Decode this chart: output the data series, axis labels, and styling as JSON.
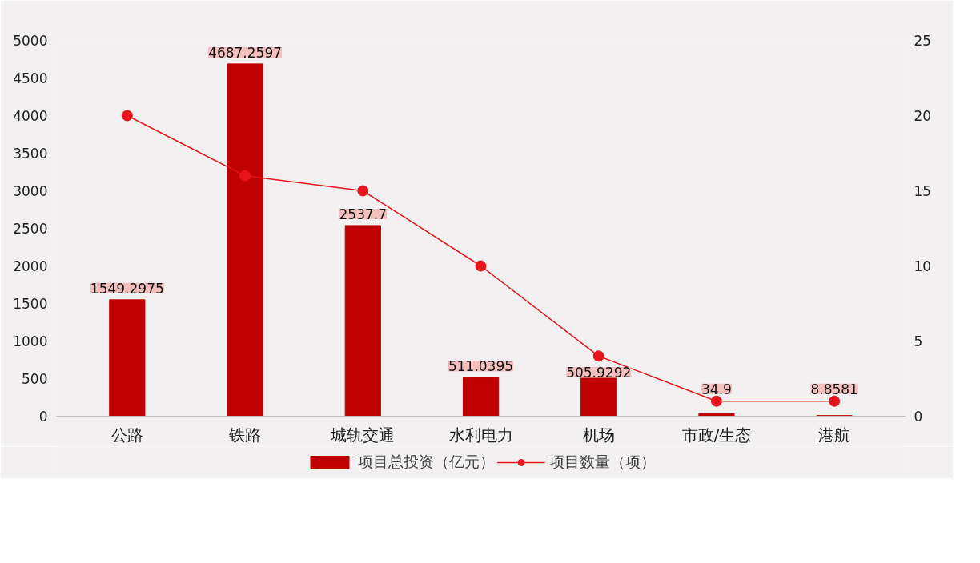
{
  "chart_data": {
    "type": "bar",
    "categories": [
      "公路",
      "铁路",
      "城轨交通",
      "水利电力",
      "机场",
      "市政/生态",
      "港航"
    ],
    "series": [
      {
        "name": "项目总投资（亿元）",
        "color": "#c00000",
        "values": [
          1549.2975,
          4687.2597,
          2537.7,
          511.0395,
          505.9292,
          34.9,
          8.8581
        ],
        "value_labels": [
          "1549.2975",
          "4687.2597",
          "2537.7",
          "511.0395",
          "505.9292",
          "34.9",
          "8.8581"
        ]
      },
      {
        "name": "项目数量（项）",
        "type": "line",
        "axis": "y2",
        "color": "#e8141b",
        "marker": "circle",
        "line_style": "solid",
        "values": [
          20,
          16,
          15,
          10,
          4,
          1,
          1
        ]
      }
    ],
    "ylim": [
      0,
      5000
    ],
    "yticks": [
      0,
      500,
      1000,
      1500,
      2000,
      2500,
      3000,
      3500,
      4000,
      4500,
      5000
    ],
    "y2lim": [
      0,
      25
    ],
    "y2ticks": [
      0,
      5,
      10,
      15,
      20,
      25
    ],
    "grid": false,
    "legend": "bottom"
  }
}
